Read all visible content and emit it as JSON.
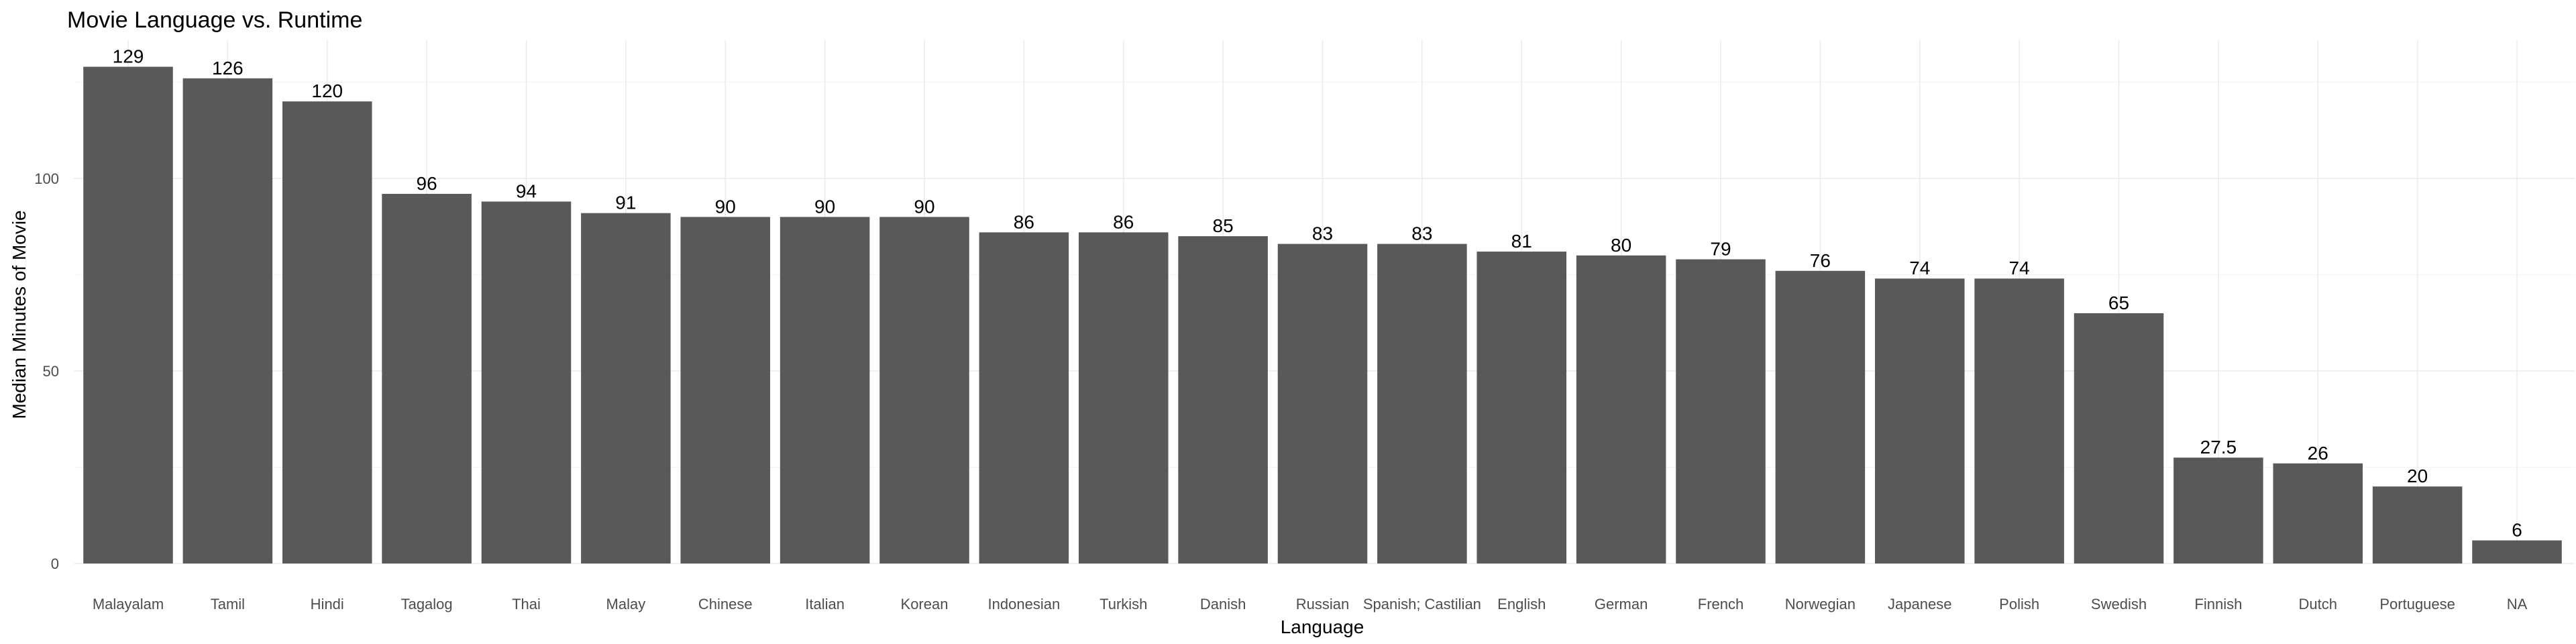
{
  "chart_data": {
    "type": "bar",
    "title": "Movie Language vs. Runtime",
    "xlabel": "Language",
    "ylabel": "Median Minutes of Movie",
    "categories": [
      "Malayalam",
      "Tamil",
      "Hindi",
      "Tagalog",
      "Thai",
      "Malay",
      "Chinese",
      "Italian",
      "Korean",
      "Indonesian",
      "Turkish",
      "Danish",
      "Russian",
      "Spanish; Castilian",
      "English",
      "German",
      "French",
      "Norwegian",
      "Japanese",
      "Polish",
      "Swedish",
      "Finnish",
      "Dutch",
      "Portuguese",
      "NA"
    ],
    "values": [
      129,
      126,
      120,
      96,
      94,
      91,
      90,
      90,
      90,
      86,
      86,
      85,
      83,
      83,
      81,
      80,
      79,
      76,
      74,
      74,
      65,
      27.5,
      26,
      20,
      6
    ],
    "data_labels": [
      "129",
      "126",
      "120",
      "96",
      "94",
      "91",
      "90",
      "90",
      "90",
      "86",
      "86",
      "85",
      "83",
      "83",
      "81",
      "80",
      "79",
      "76",
      "74",
      "74",
      "65",
      "27.5",
      "26",
      "20",
      "6"
    ],
    "yticks": [
      0,
      50,
      100
    ],
    "ylim": [
      0,
      135
    ],
    "grid": true,
    "bar_color": "#595959",
    "legend": "none"
  }
}
